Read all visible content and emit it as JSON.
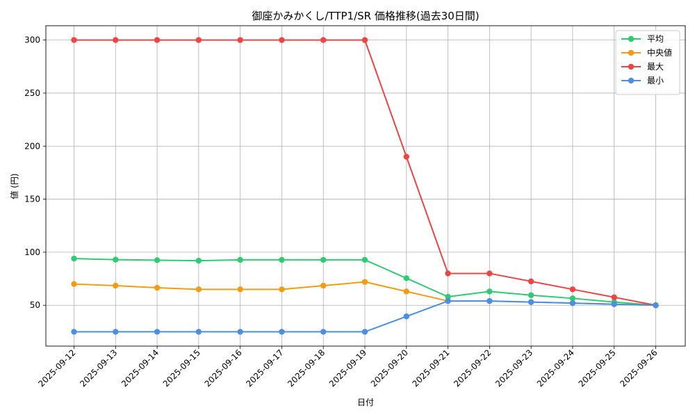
{
  "chart_data": {
    "type": "line",
    "title": "御座かみかくし/TTP1/SR 価格推移(過去30日間)",
    "xlabel": "日付",
    "ylabel": "値 (円)",
    "categories": [
      "2025-09-12",
      "2025-09-13",
      "2025-09-14",
      "2025-09-15",
      "2025-09-16",
      "2025-09-17",
      "2025-09-18",
      "2025-09-19",
      "2025-09-20",
      "2025-09-21",
      "2025-09-22",
      "2025-09-23",
      "2025-09-24",
      "2025-09-25",
      "2025-09-26"
    ],
    "ylim": [
      11.5,
      313.5
    ],
    "yticks": [
      50,
      100,
      150,
      200,
      250,
      300
    ],
    "grid": true,
    "legend_position": "top-right",
    "series": [
      {
        "name": "平均",
        "color": "#2ecc71",
        "values": [
          94,
          93,
          92.5,
          92,
          92.8,
          92.8,
          92.8,
          92.8,
          75.5,
          58,
          63,
          59.5,
          56.5,
          53,
          50
        ]
      },
      {
        "name": "中央値",
        "color": "#f39c12",
        "values": [
          70,
          68.5,
          66.5,
          65,
          65,
          65,
          68.5,
          72,
          63,
          54,
          54,
          53,
          52,
          51,
          50
        ]
      },
      {
        "name": "最大",
        "color": "#ef4444",
        "values": [
          300,
          300,
          300,
          300,
          300,
          300,
          300,
          300,
          190,
          80,
          80,
          72.5,
          65,
          57.5,
          50
        ]
      },
      {
        "name": "最小",
        "color": "#4a90e2",
        "values": [
          25,
          25,
          25,
          25,
          25,
          25,
          25,
          25,
          39.5,
          54,
          54,
          53,
          52,
          51,
          50
        ]
      }
    ]
  }
}
